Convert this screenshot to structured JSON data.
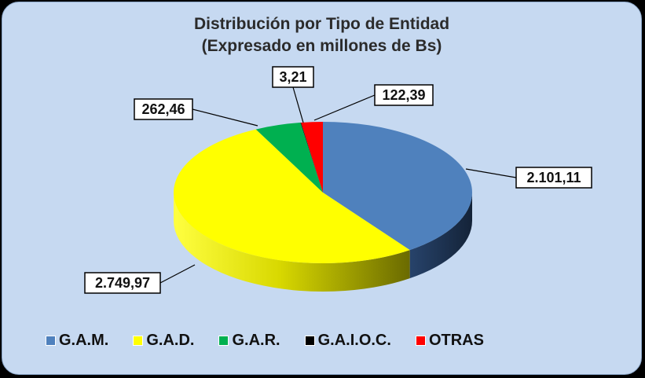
{
  "colors": {
    "background": "#c6d9f1",
    "gam": "#4f81bd",
    "gad": "#ffff00",
    "gar": "#00b050",
    "gaioc": "#000000",
    "otras": "#ff0000"
  },
  "chart_data": {
    "type": "pie",
    "style": "3d-exploded-pie",
    "title": "Distribución por Tipo de Entidad",
    "subtitle": "(Expresado en millones de Bs)",
    "categories": [
      "G.A.M.",
      "G.A.D.",
      "G.A.R.",
      "G.A.I.O.C.",
      "OTRAS"
    ],
    "values": [
      2101.11,
      2749.97,
      262.46,
      3.21,
      122.39
    ],
    "data_labels": [
      "2.101,11",
      "2.749,97",
      "262,46",
      "3,21",
      "122,39"
    ],
    "legend_position": "bottom",
    "series": [
      {
        "name": "G.A.M.",
        "value": 2101.11,
        "label": "2.101,11",
        "color": "#4f81bd",
        "side_color": "#1f3456"
      },
      {
        "name": "G.A.D.",
        "value": 2749.97,
        "label": "2.749,97",
        "color": "#ffff00",
        "side_color": "#8f8f00"
      },
      {
        "name": "G.A.R.",
        "value": 262.46,
        "label": "262,46",
        "color": "#00b050",
        "side_color": "#00602b"
      },
      {
        "name": "G.A.I.O.C.",
        "value": 3.21,
        "label": "3,21",
        "color": "#000000",
        "side_color": "#000000"
      },
      {
        "name": "OTRAS",
        "value": 122.39,
        "label": "122,39",
        "color": "#ff0000",
        "side_color": "#8a0000"
      }
    ]
  }
}
